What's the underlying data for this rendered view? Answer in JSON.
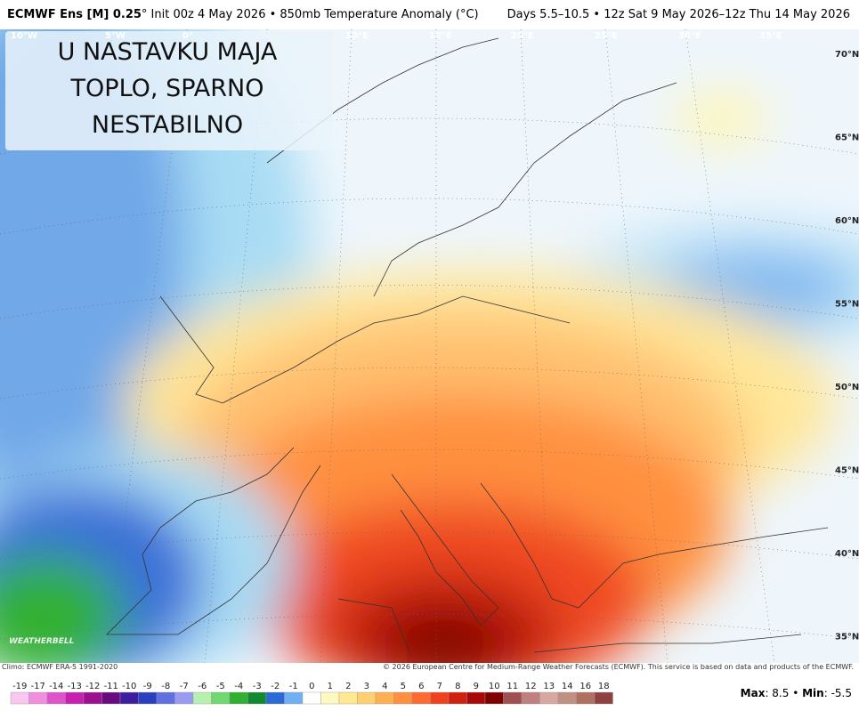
{
  "header": {
    "model": "ECMWF Ens [M] 0.25",
    "info": "° Init 00z 4 May 2026 • 850mb Temperature Anomaly (°C)",
    "period": "Days 5.5–10.5 • 12z Sat 9 May 2026–12z Thu 14 May 2026"
  },
  "overlay": {
    "lines": [
      "U NASTAVKU MAJA",
      "TOPLO, SPARNO",
      "NESTABILNO"
    ]
  },
  "map": {
    "longitudes": [
      "10°W",
      "5°W",
      "0°",
      "10°E",
      "15°E",
      "20°E",
      "25°E",
      "30°E",
      "35°E"
    ],
    "latitudes": [
      "70°N",
      "65°N",
      "60°N",
      "55°N",
      "50°N",
      "45°N",
      "40°N",
      "35°N"
    ],
    "logo": "WEATHERBELL"
  },
  "footer": {
    "climo": "Climo: ECMWF ERA-5 1991-2020",
    "copyright": "© 2026 European Centre for Medium-Range Weather Forecasts (ECMWF). This service is based on data and products of the ECMWF."
  },
  "colorbar": {
    "labels": [
      -19,
      -17,
      -14,
      -13,
      -12,
      -11,
      -10,
      -9,
      -8,
      -7,
      -6,
      -5,
      -4,
      -3,
      -2,
      -1,
      0,
      1,
      2,
      3,
      4,
      5,
      6,
      7,
      8,
      9,
      10,
      11,
      12,
      13,
      14,
      16,
      18
    ],
    "colors": [
      "#f9c6f0",
      "#f08ee0",
      "#e052cc",
      "#c720b0",
      "#9c1090",
      "#6a0a80",
      "#3c1fa0",
      "#2a3fc0",
      "#6070e0",
      "#9a9af0",
      "#b8f0b0",
      "#70d870",
      "#30b030",
      "#108a30",
      "#2a6ad8",
      "#70b0f0",
      "#ffffff",
      "#fff8c0",
      "#ffe890",
      "#ffd070",
      "#ffb050",
      "#ff9040",
      "#ff6a30",
      "#f04020",
      "#d02010",
      "#a80808",
      "#800000",
      "#a05050",
      "#c08080",
      "#d8a8a0",
      "#c09080",
      "#b07060",
      "#904040"
    ]
  },
  "stats": {
    "max_label": "Max",
    "max": 8.5,
    "min_label": "Min",
    "min": -5.5
  }
}
